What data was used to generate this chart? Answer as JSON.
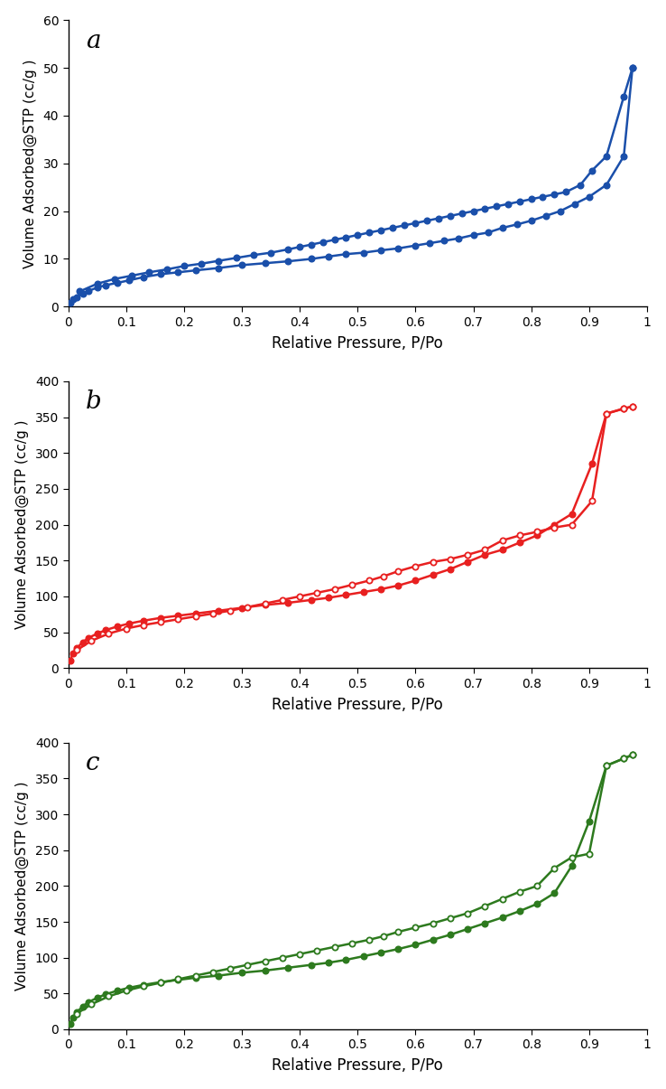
{
  "panel_a": {
    "label": "a",
    "color": "#1a4faa",
    "marker_fill_ads": "#1a4faa",
    "marker_fill_des": "#1a4faa",
    "ylim": [
      0,
      60
    ],
    "yticks": [
      0,
      10,
      20,
      30,
      40,
      50,
      60
    ],
    "adsorption_x": [
      0.003,
      0.008,
      0.015,
      0.025,
      0.035,
      0.05,
      0.065,
      0.085,
      0.105,
      0.13,
      0.16,
      0.19,
      0.22,
      0.26,
      0.3,
      0.34,
      0.38,
      0.42,
      0.45,
      0.48,
      0.51,
      0.54,
      0.57,
      0.6,
      0.625,
      0.65,
      0.675,
      0.7,
      0.725,
      0.75,
      0.775,
      0.8,
      0.825,
      0.85,
      0.875,
      0.9,
      0.93,
      0.96,
      0.975
    ],
    "adsorption_y": [
      0.8,
      1.5,
      2.0,
      2.8,
      3.3,
      4.0,
      4.5,
      5.0,
      5.5,
      6.2,
      6.8,
      7.2,
      7.6,
      8.1,
      8.7,
      9.1,
      9.5,
      10.0,
      10.5,
      11.0,
      11.3,
      11.8,
      12.2,
      12.8,
      13.3,
      13.8,
      14.3,
      15.0,
      15.5,
      16.5,
      17.2,
      18.0,
      19.0,
      20.0,
      21.5,
      23.0,
      25.5,
      31.5,
      50.0
    ],
    "desorption_x": [
      0.975,
      0.96,
      0.93,
      0.905,
      0.885,
      0.86,
      0.84,
      0.82,
      0.8,
      0.78,
      0.76,
      0.74,
      0.72,
      0.7,
      0.68,
      0.66,
      0.64,
      0.62,
      0.6,
      0.58,
      0.56,
      0.54,
      0.52,
      0.5,
      0.48,
      0.46,
      0.44,
      0.42,
      0.4,
      0.38,
      0.35,
      0.32,
      0.29,
      0.26,
      0.23,
      0.2,
      0.17,
      0.14,
      0.11,
      0.08,
      0.05,
      0.02
    ],
    "desorption_y": [
      50.0,
      44.0,
      31.5,
      28.5,
      25.5,
      24.0,
      23.5,
      23.0,
      22.5,
      22.0,
      21.5,
      21.0,
      20.5,
      20.0,
      19.5,
      19.0,
      18.5,
      18.0,
      17.5,
      17.0,
      16.5,
      16.0,
      15.5,
      15.0,
      14.5,
      14.0,
      13.5,
      13.0,
      12.5,
      12.0,
      11.3,
      10.8,
      10.2,
      9.6,
      9.0,
      8.5,
      7.8,
      7.2,
      6.5,
      5.8,
      4.8,
      3.2
    ]
  },
  "panel_b": {
    "label": "b",
    "color": "#e82020",
    "marker_fill_ads": "#e82020",
    "marker_fill_des": "white",
    "ylim": [
      0,
      400
    ],
    "yticks": [
      0,
      50,
      100,
      150,
      200,
      250,
      300,
      350,
      400
    ],
    "adsorption_x": [
      0.003,
      0.008,
      0.015,
      0.025,
      0.035,
      0.05,
      0.065,
      0.085,
      0.105,
      0.13,
      0.16,
      0.19,
      0.22,
      0.26,
      0.3,
      0.34,
      0.38,
      0.42,
      0.45,
      0.48,
      0.51,
      0.54,
      0.57,
      0.6,
      0.63,
      0.66,
      0.69,
      0.72,
      0.75,
      0.78,
      0.81,
      0.84,
      0.87,
      0.905,
      0.93,
      0.96,
      0.975
    ],
    "adsorption_y": [
      10.0,
      20.0,
      28.0,
      36.0,
      42.0,
      48.0,
      53.0,
      58.0,
      62.0,
      66.0,
      70.0,
      73.0,
      76.0,
      80.0,
      84.0,
      88.0,
      91.0,
      95.0,
      98.0,
      102.0,
      106.0,
      110.0,
      115.0,
      122.0,
      130.0,
      138.0,
      148.0,
      158.0,
      165.0,
      175.0,
      185.0,
      200.0,
      215.0,
      285.0,
      355.0,
      362.0,
      365.0
    ],
    "desorption_x": [
      0.975,
      0.96,
      0.93,
      0.905,
      0.87,
      0.84,
      0.81,
      0.78,
      0.75,
      0.72,
      0.69,
      0.66,
      0.63,
      0.6,
      0.57,
      0.545,
      0.52,
      0.49,
      0.46,
      0.43,
      0.4,
      0.37,
      0.34,
      0.31,
      0.28,
      0.25,
      0.22,
      0.19,
      0.16,
      0.13,
      0.1,
      0.07,
      0.04,
      0.015
    ],
    "desorption_y": [
      365.0,
      362.0,
      355.0,
      233.0,
      200.0,
      196.0,
      190.0,
      185.0,
      178.0,
      165.0,
      158.0,
      152.0,
      148.0,
      142.0,
      135.0,
      128.0,
      122.0,
      116.0,
      110.0,
      105.0,
      100.0,
      95.0,
      90.0,
      85.0,
      80.0,
      76.0,
      72.0,
      68.0,
      64.0,
      60.0,
      55.0,
      48.0,
      38.0,
      25.0
    ]
  },
  "panel_c": {
    "label": "c",
    "color": "#2d7a1e",
    "marker_fill_ads": "#2d7a1e",
    "marker_fill_des": "white",
    "ylim": [
      0,
      400
    ],
    "yticks": [
      0,
      50,
      100,
      150,
      200,
      250,
      300,
      350,
      400
    ],
    "adsorption_x": [
      0.003,
      0.008,
      0.015,
      0.025,
      0.035,
      0.05,
      0.065,
      0.085,
      0.105,
      0.13,
      0.16,
      0.19,
      0.22,
      0.26,
      0.3,
      0.34,
      0.38,
      0.42,
      0.45,
      0.48,
      0.51,
      0.54,
      0.57,
      0.6,
      0.63,
      0.66,
      0.69,
      0.72,
      0.75,
      0.78,
      0.81,
      0.84,
      0.87,
      0.9,
      0.93,
      0.96,
      0.975
    ],
    "adsorption_y": [
      8.0,
      16.0,
      24.0,
      32.0,
      38.0,
      44.0,
      49.0,
      54.0,
      58.0,
      62.0,
      66.0,
      69.0,
      72.0,
      75.0,
      79.0,
      82.0,
      86.0,
      90.0,
      93.0,
      97.0,
      102.0,
      107.0,
      112.0,
      118.0,
      125.0,
      132.0,
      140.0,
      148.0,
      156.0,
      165.0,
      175.0,
      190.0,
      228.0,
      290.0,
      368.0,
      378.0,
      383.0
    ],
    "desorption_x": [
      0.975,
      0.96,
      0.93,
      0.9,
      0.87,
      0.84,
      0.81,
      0.78,
      0.75,
      0.72,
      0.69,
      0.66,
      0.63,
      0.6,
      0.57,
      0.545,
      0.52,
      0.49,
      0.46,
      0.43,
      0.4,
      0.37,
      0.34,
      0.31,
      0.28,
      0.25,
      0.22,
      0.19,
      0.16,
      0.13,
      0.1,
      0.07,
      0.04,
      0.015
    ],
    "desorption_y": [
      383.0,
      378.0,
      368.0,
      245.0,
      240.0,
      225.0,
      200.0,
      192.0,
      182.0,
      172.0,
      162.0,
      155.0,
      148.0,
      142.0,
      136.0,
      130.0,
      125.0,
      120.0,
      115.0,
      110.0,
      105.0,
      100.0,
      95.0,
      90.0,
      85.0,
      80.0,
      75.0,
      70.0,
      65.0,
      60.0,
      54.0,
      46.0,
      35.0,
      22.0
    ]
  },
  "xlabel": "Relative Pressure, P/Po",
  "ylabel": "Volume Adsorbed@STP (cc/g )",
  "xlim": [
    0,
    1.0
  ],
  "xticks": [
    0,
    0.1,
    0.2,
    0.3,
    0.4,
    0.5,
    0.6,
    0.7,
    0.8,
    0.9,
    1.0
  ]
}
